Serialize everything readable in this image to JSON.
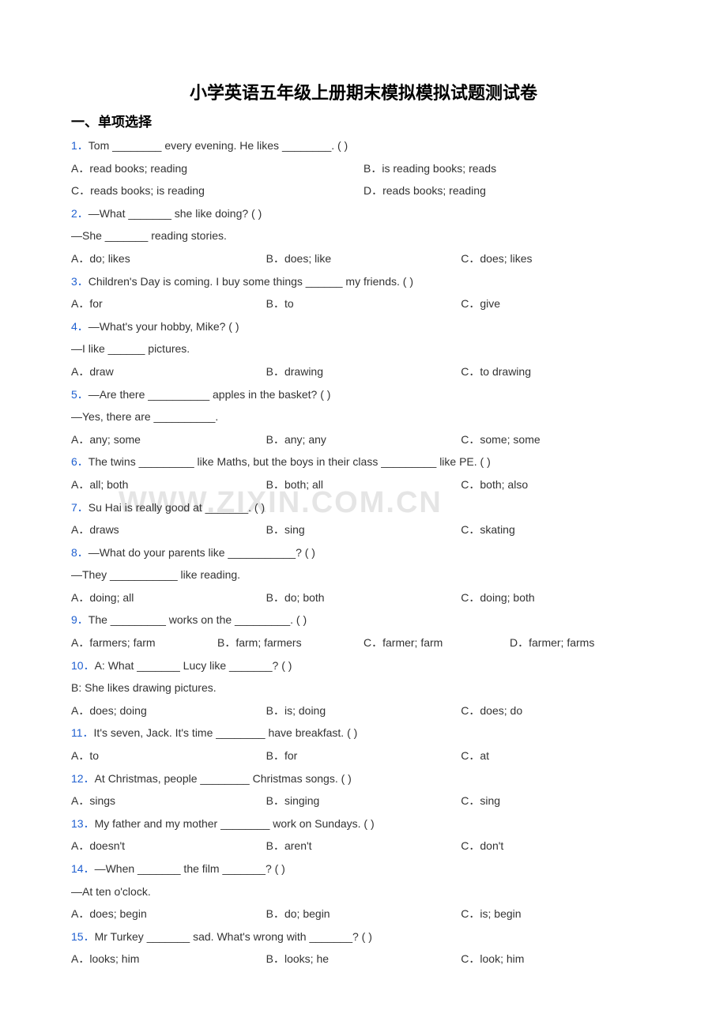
{
  "title": "小学英语五年级上册期末模拟模拟试题测试卷",
  "section_header": "一、单项选择",
  "watermark": "WWW.ZIXIN.COM.CN",
  "questions": [
    {
      "num": "1．",
      "text": "Tom ________ every evening. He likes ________. (    )",
      "follow": null,
      "opts_layout": "2",
      "opts": [
        "A．read books; reading",
        "B．is reading books; reads",
        "C．reads books; is reading",
        "D．reads books; reading"
      ]
    },
    {
      "num": "2．",
      "text": "—What _______ she like doing? (    )",
      "follow": "—She _______ reading stories.",
      "opts_layout": "3",
      "opts": [
        "A．do; likes",
        "B．does; like",
        "C．does; likes"
      ]
    },
    {
      "num": "3．",
      "text": "Children's Day is coming. I buy some things ______ my friends. (    )",
      "follow": null,
      "opts_layout": "3",
      "opts": [
        "A．for",
        "B．to",
        "C．give"
      ]
    },
    {
      "num": "4．",
      "text": "—What's your hobby, Mike? (    )",
      "follow": "—I like ______ pictures.",
      "opts_layout": "3",
      "opts": [
        "A．draw",
        "B．drawing",
        "C．to drawing"
      ]
    },
    {
      "num": "5．",
      "text": "—Are there __________ apples in the basket? (    )",
      "follow": "—Yes, there are __________.",
      "opts_layout": "3",
      "opts": [
        "A．any; some",
        "B．any; any",
        "C．some; some"
      ]
    },
    {
      "num": "6．",
      "text": "The twins _________ like Maths, but the boys in their class _________ like PE. (    )",
      "follow": null,
      "opts_layout": "3",
      "opts": [
        "A．all; both",
        "B．both; all",
        "C．both; also"
      ]
    },
    {
      "num": "7．",
      "text": "Su Hai is really good at _______. (    )",
      "follow": null,
      "opts_layout": "3",
      "opts": [
        "A．draws",
        "B．sing",
        "C．skating"
      ]
    },
    {
      "num": "8．",
      "text": "—What do your parents like ___________? (      )",
      "follow": "—They ___________ like reading.",
      "opts_layout": "3",
      "opts": [
        "A．doing; all",
        "B．do; both",
        "C．doing; both"
      ]
    },
    {
      "num": "9．",
      "text": "The _________ works on the _________. (    )",
      "follow": null,
      "opts_layout": "4",
      "opts": [
        "A．farmers; farm",
        "B．farm; farmers",
        "C．farmer; farm",
        "D．farmer; farms"
      ]
    },
    {
      "num": "10．",
      "text": "A: What _______ Lucy like _______? (    )",
      "follow": "B: She likes drawing pictures.",
      "opts_layout": "3",
      "opts": [
        "A．does; doing",
        "B．is; doing",
        "C．does; do"
      ]
    },
    {
      "num": "11．",
      "text": "It's seven, Jack. It's time ________ have breakfast. (     )",
      "follow": null,
      "opts_layout": "3",
      "opts": [
        "A．to",
        "B．for",
        "C．at"
      ]
    },
    {
      "num": "12．",
      "text": "At Christmas, people ________ Christmas songs. (     )",
      "follow": null,
      "opts_layout": "3",
      "opts": [
        "A．sings",
        "B．singing",
        "C．sing"
      ]
    },
    {
      "num": "13．",
      "text": "My father and my mother ________ work on Sundays. (    )",
      "follow": null,
      "opts_layout": "3",
      "opts": [
        "A．doesn't",
        "B．aren't",
        "C．don't"
      ]
    },
    {
      "num": "14．",
      "text": "—When _______ the film _______? (    )",
      "follow": "—At ten o'clock.",
      "opts_layout": "3",
      "opts": [
        "A．does; begin",
        "B．do; begin",
        "C．is; begin"
      ]
    },
    {
      "num": "15．",
      "text": "Mr Turkey _______ sad. What's wrong with _______? (    )",
      "follow": null,
      "opts_layout": "3",
      "opts": [
        "A．looks; him",
        "B．looks; he",
        "C．look; him"
      ]
    }
  ]
}
